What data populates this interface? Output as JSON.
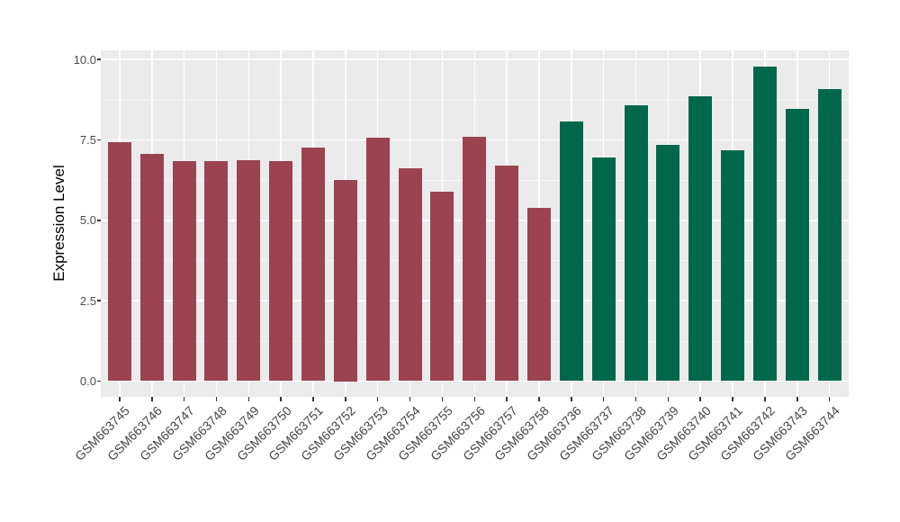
{
  "chart_data": {
    "type": "bar",
    "title": "",
    "xlabel": "",
    "ylabel": "Expression Level",
    "ylim": [
      0,
      10.0
    ],
    "yticks": [
      0,
      2.5,
      5,
      7.5,
      10
    ],
    "ytick_labels": [
      "0.0",
      "2.5",
      "5.0",
      "7.5",
      "10.0"
    ],
    "minor_yticks": [
      1.25,
      3.75,
      6.25,
      8.75
    ],
    "grid": "on",
    "legend_position": "none",
    "categories": [
      "GSM663745",
      "GSM663746",
      "GSM663747",
      "GSM663748",
      "GSM663749",
      "GSM663750",
      "GSM663751",
      "GSM663752",
      "GSM663753",
      "GSM663754",
      "GSM663755",
      "GSM663756",
      "GSM663757",
      "GSM663758",
      "GSM663736",
      "GSM663737",
      "GSM663738",
      "GSM663739",
      "GSM663740",
      "GSM663741",
      "GSM663742",
      "GSM663743",
      "GSM663744"
    ],
    "values": [
      7.42,
      7.05,
      6.85,
      6.85,
      6.88,
      6.85,
      7.27,
      6.25,
      7.58,
      6.61,
      5.88,
      7.6,
      6.7,
      5.38,
      8.07,
      6.96,
      8.57,
      7.34,
      8.85,
      7.17,
      9.77,
      8.47,
      9.07
    ],
    "bar_groups": [
      "group1",
      "group1",
      "group1",
      "group1",
      "group1",
      "group1",
      "group1",
      "group1",
      "group1",
      "group1",
      "group1",
      "group1",
      "group1",
      "group1",
      "group2",
      "group2",
      "group2",
      "group2",
      "group2",
      "group2",
      "group2",
      "group2",
      "group2"
    ],
    "group_colors": {
      "group1": "#9C4351",
      "group2": "#00684A"
    },
    "panel_background": "#EBEBEB",
    "gridline_color": "#FFFFFF"
  }
}
